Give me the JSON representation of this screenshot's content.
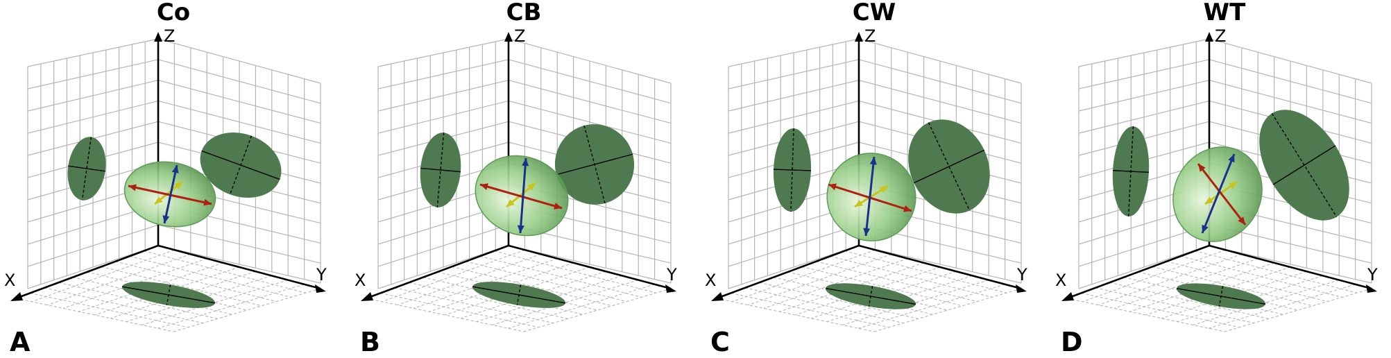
{
  "colors": {
    "grid": "#b5b5b5",
    "axis": "#000000",
    "projection_fill": "#4f7a4f",
    "ellipsoid_fill": "#96cd86",
    "ellipsoid_edge": "#5e9a55",
    "arrow_red": "#b01f10",
    "arrow_blue": "#1b2f8c",
    "arrow_yellow": "#c9c31c"
  },
  "axes": {
    "x_label": "X",
    "y_label": "Y",
    "z_label": "Z"
  },
  "panels": [
    {
      "title": "Co",
      "letter": "A"
    },
    {
      "title": "CB",
      "letter": "B"
    },
    {
      "title": "CW",
      "letter": "C"
    },
    {
      "title": "WT",
      "letter": "D"
    }
  ]
}
